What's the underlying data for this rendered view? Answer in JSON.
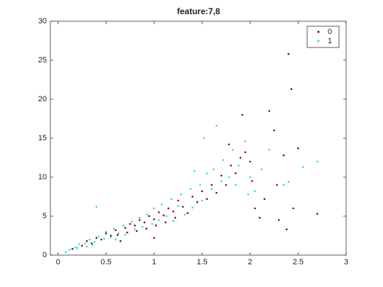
{
  "chart_data": {
    "type": "scatter",
    "title": "feature:7,8",
    "xlim": [
      -0.08,
      3
    ],
    "xticks": [
      0,
      0.5,
      1,
      1.5,
      2,
      2.5,
      3
    ],
    "ylim": [
      0,
      30
    ],
    "yticks": [
      0,
      5,
      10,
      15,
      20,
      25,
      30
    ],
    "legend": "top-right",
    "series": [
      {
        "name": "0",
        "color": "#8b0000",
        "x": [
          0.15,
          0.25,
          0.3,
          0.35,
          0.4,
          0.45,
          0.5,
          0.55,
          0.6,
          0.62,
          0.7,
          0.72,
          0.75,
          0.8,
          0.82,
          0.85,
          0.9,
          0.92,
          0.95,
          1.0,
          1.02,
          1.05,
          1.1,
          1.12,
          1.15,
          1.2,
          1.22,
          1.25,
          1.3,
          1.35,
          1.4,
          1.45,
          1.5,
          1.55,
          1.6,
          1.65,
          1.7,
          1.75,
          1.78,
          1.8,
          1.85,
          1.9,
          1.92,
          1.95,
          2.0,
          2.02,
          2.05,
          2.1,
          2.15,
          2.2,
          2.25,
          2.28,
          2.3,
          2.35,
          2.38,
          2.4,
          2.43,
          2.45,
          2.5,
          2.7,
          1.0,
          0.65
        ],
        "values": [
          0.8,
          1.2,
          1.8,
          1.5,
          2.2,
          2.0,
          2.8,
          2.5,
          3.2,
          2.6,
          3.5,
          2.9,
          4.0,
          3.8,
          3.1,
          4.5,
          4.2,
          3.4,
          5.0,
          4.6,
          3.8,
          5.5,
          5.1,
          4.2,
          6.0,
          5.6,
          4.8,
          7.0,
          6.2,
          5.4,
          7.5,
          6.8,
          8.2,
          7.2,
          9.0,
          8.0,
          10.2,
          9.0,
          14.2,
          11.5,
          10.5,
          12.5,
          18.0,
          13.2,
          12.0,
          9.5,
          6.0,
          4.8,
          7.2,
          18.5,
          16.0,
          9.0,
          4.5,
          12.8,
          3.3,
          25.8,
          21.3,
          6.0,
          13.7,
          5.3,
          2.2,
          1.8
        ]
      },
      {
        "name": "1",
        "color": "#22e0d8",
        "x": [
          0.08,
          0.12,
          0.18,
          0.2,
          0.22,
          0.28,
          0.3,
          0.33,
          0.38,
          0.4,
          0.42,
          0.48,
          0.5,
          0.55,
          0.58,
          0.63,
          0.68,
          0.7,
          0.77,
          0.8,
          0.85,
          0.88,
          0.93,
          0.98,
          1.0,
          1.05,
          1.08,
          1.13,
          1.18,
          1.2,
          1.25,
          1.28,
          1.32,
          1.38,
          1.4,
          1.42,
          1.48,
          1.5,
          1.52,
          1.55,
          1.6,
          1.62,
          1.65,
          1.7,
          1.72,
          1.78,
          1.82,
          1.85,
          1.88,
          1.95,
          1.98,
          2.0,
          2.05,
          2.12,
          2.2,
          2.35,
          2.55,
          2.7,
          2.4,
          0.36,
          0.6
        ],
        "values": [
          0.4,
          0.7,
          1.0,
          0.9,
          1.4,
          1.5,
          1.1,
          2.0,
          1.7,
          6.2,
          2.4,
          2.1,
          3.0,
          2.3,
          3.4,
          2.8,
          3.8,
          2.6,
          4.3,
          3.3,
          4.8,
          3.6,
          5.2,
          4.0,
          6.0,
          4.5,
          6.5,
          5.0,
          7.2,
          4.4,
          6.3,
          7.8,
          5.2,
          8.5,
          6.1,
          10.8,
          9.0,
          7.0,
          15.0,
          10.5,
          8.5,
          11.0,
          16.6,
          9.5,
          12.2,
          10.0,
          13.5,
          9.0,
          11.5,
          14.6,
          7.8,
          10.0,
          8.2,
          11.0,
          13.5,
          9.0,
          11.3,
          12.0,
          9.4,
          1.3,
          2.0
        ]
      }
    ]
  }
}
